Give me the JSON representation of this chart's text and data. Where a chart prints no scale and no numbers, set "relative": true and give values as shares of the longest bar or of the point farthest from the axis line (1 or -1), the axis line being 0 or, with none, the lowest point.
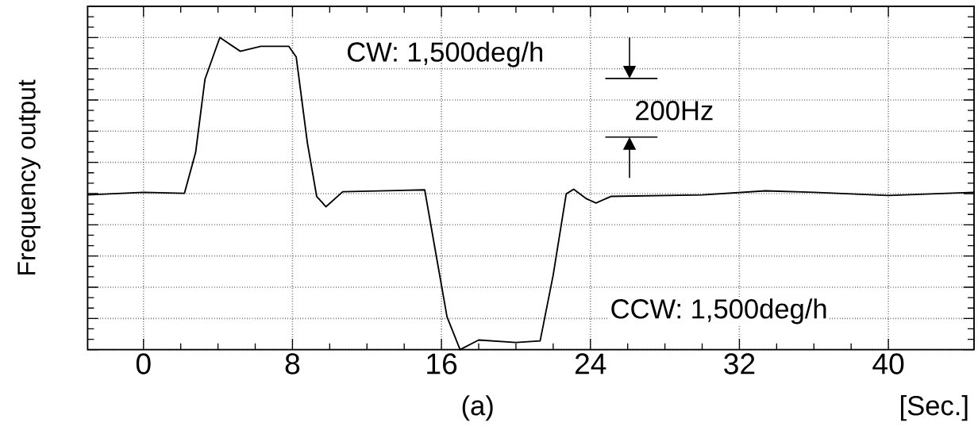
{
  "chart_data": {
    "type": "line",
    "xlabel": "[Sec.]",
    "ylabel": "Frequency output",
    "relative": true,
    "annotations": [
      "CW: 1,500deg/h",
      "200Hz",
      "CCW: 1,500deg/h",
      "(a)"
    ],
    "x": [
      -3,
      0,
      2.2,
      2.8,
      3.3,
      4.1,
      5.2,
      6.3,
      7.8,
      8.2,
      8.8,
      9.3,
      9.8,
      10.7,
      15.1,
      15.7,
      16.3,
      17.0,
      18.0,
      20.0,
      21.3,
      22.0,
      22.7,
      23.1,
      23.8,
      24.3,
      25.1,
      30,
      33.4,
      36,
      40,
      44.6
    ],
    "values": [
      0.496,
      0.504,
      0.501,
      0.632,
      0.866,
      1.0,
      0.956,
      0.972,
      0.972,
      0.938,
      0.663,
      0.491,
      0.458,
      0.506,
      0.512,
      0.308,
      0.105,
      0,
      0.031,
      0.023,
      0.028,
      0.239,
      0.499,
      0.514,
      0.483,
      0.47,
      0.491,
      0.496,
      0.509,
      0.504,
      0.494,
      0.504
    ],
    "color": "#000000",
    "xlim": [
      -3,
      44.6
    ],
    "xticks": [
      0,
      8,
      16,
      24,
      32,
      40
    ],
    "grid": true,
    "marker": "none",
    "line_style": "solid"
  }
}
